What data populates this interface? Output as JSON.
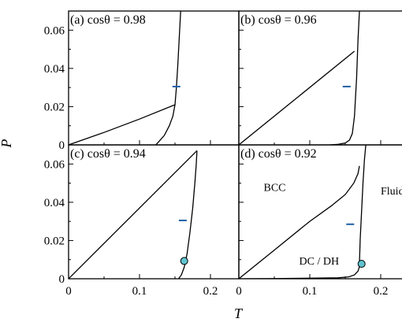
{
  "chart_data": [
    {
      "type": "line",
      "panel_label": "(a) cosθ = 0.98",
      "xlim": [
        0,
        0.24
      ],
      "ylim": [
        0,
        0.07
      ],
      "xticks": [],
      "yticks": [
        "0",
        "0.02",
        "0.04",
        "0.06"
      ],
      "series": [
        {
          "x": [
            0,
            0.05,
            0.1,
            0.15
          ],
          "y": [
            0,
            0.0065,
            0.0135,
            0.021
          ]
        },
        {
          "x": [
            0.123,
            0.128,
            0.135,
            0.142,
            0.147,
            0.15,
            0.152,
            0.154,
            0.156,
            0.158
          ],
          "y": [
            0,
            0.002,
            0.005,
            0.01,
            0.015,
            0.021,
            0.03,
            0.042,
            0.056,
            0.07
          ]
        }
      ],
      "markers": [
        {
          "shape": "dash",
          "x": 0.152,
          "y": 0.0305,
          "color": "#1f5fa6"
        }
      ],
      "region_labels": []
    },
    {
      "type": "line",
      "panel_label": "(b) cosθ = 0.96",
      "xlim": [
        0,
        0.24
      ],
      "ylim": [
        0,
        0.07
      ],
      "xticks": [],
      "yticks": [],
      "series": [
        {
          "x": [
            0,
            0.163
          ],
          "y": [
            0,
            0.049
          ]
        },
        {
          "x": [
            0.128,
            0.14,
            0.15,
            0.156,
            0.16,
            0.163,
            0.166,
            0.168,
            0.17
          ],
          "y": [
            0,
            0.0003,
            0.001,
            0.0025,
            0.006,
            0.015,
            0.035,
            0.055,
            0.07
          ]
        }
      ],
      "markers": [
        {
          "shape": "dash",
          "x": 0.152,
          "y": 0.0305,
          "color": "#1f5fa6"
        }
      ],
      "region_labels": []
    },
    {
      "type": "line",
      "panel_label": "(c) cosθ = 0.94",
      "xlim": [
        0,
        0.24
      ],
      "ylim": [
        0,
        0.07
      ],
      "xticks": [
        "0",
        "0.1",
        "0.2"
      ],
      "yticks": [
        "0",
        "0.02",
        "0.04",
        "0.06"
      ],
      "series": [
        {
          "x": [
            0,
            0.181
          ],
          "y": [
            0,
            0.067
          ]
        },
        {
          "x": [
            0.155,
            0.159,
            0.163,
            0.167,
            0.171,
            0.175,
            0.178,
            0.18,
            0.181
          ],
          "y": [
            0,
            0.002,
            0.006,
            0.013,
            0.024,
            0.037,
            0.05,
            0.06,
            0.067
          ]
        }
      ],
      "markers": [
        {
          "shape": "dash",
          "x": 0.161,
          "y": 0.0305,
          "color": "#1f5fa6"
        },
        {
          "shape": "circle",
          "x": 0.163,
          "y": 0.0093,
          "color": "#5fc3cf"
        }
      ],
      "region_labels": []
    },
    {
      "type": "line",
      "panel_label": "(d) cosθ = 0.92",
      "xlim": [
        0,
        0.24
      ],
      "ylim": [
        0,
        0.07
      ],
      "xticks": [
        "0",
        "0.1",
        "0.2"
      ],
      "yticks": [],
      "series": [
        {
          "x": [
            0,
            0.05,
            0.1,
            0.13,
            0.15,
            0.162,
            0.168,
            0.17
          ],
          "y": [
            0,
            0.015,
            0.03,
            0.038,
            0.044,
            0.05,
            0.055,
            0.059
          ]
        },
        {
          "x": [
            0,
            0.05,
            0.1,
            0.14,
            0.155,
            0.163,
            0.168,
            0.171
          ],
          "y": [
            0,
            0.0001,
            0.0003,
            0.0005,
            0.001,
            0.002,
            0.004,
            0.0075
          ]
        },
        {
          "x": [
            0.17,
            0.171,
            0.173,
            0.175,
            0.177,
            0.179
          ],
          "y": [
            0.0075,
            0.02,
            0.035,
            0.05,
            0.062,
            0.07
          ]
        }
      ],
      "markers": [
        {
          "shape": "dash",
          "x": 0.157,
          "y": 0.0285,
          "color": "#1f5fa6"
        },
        {
          "shape": "circle",
          "x": 0.173,
          "y": 0.0078,
          "color": "#5fc3cf"
        }
      ],
      "region_labels": [
        {
          "text": "BCC",
          "x": 0.035,
          "y": 0.046
        },
        {
          "text": "Fluid",
          "x": 0.2,
          "y": 0.044
        },
        {
          "text": "DC / DH",
          "x": 0.085,
          "y": 0.0075
        }
      ]
    }
  ],
  "xlabel": "T",
  "ylabel": "P"
}
